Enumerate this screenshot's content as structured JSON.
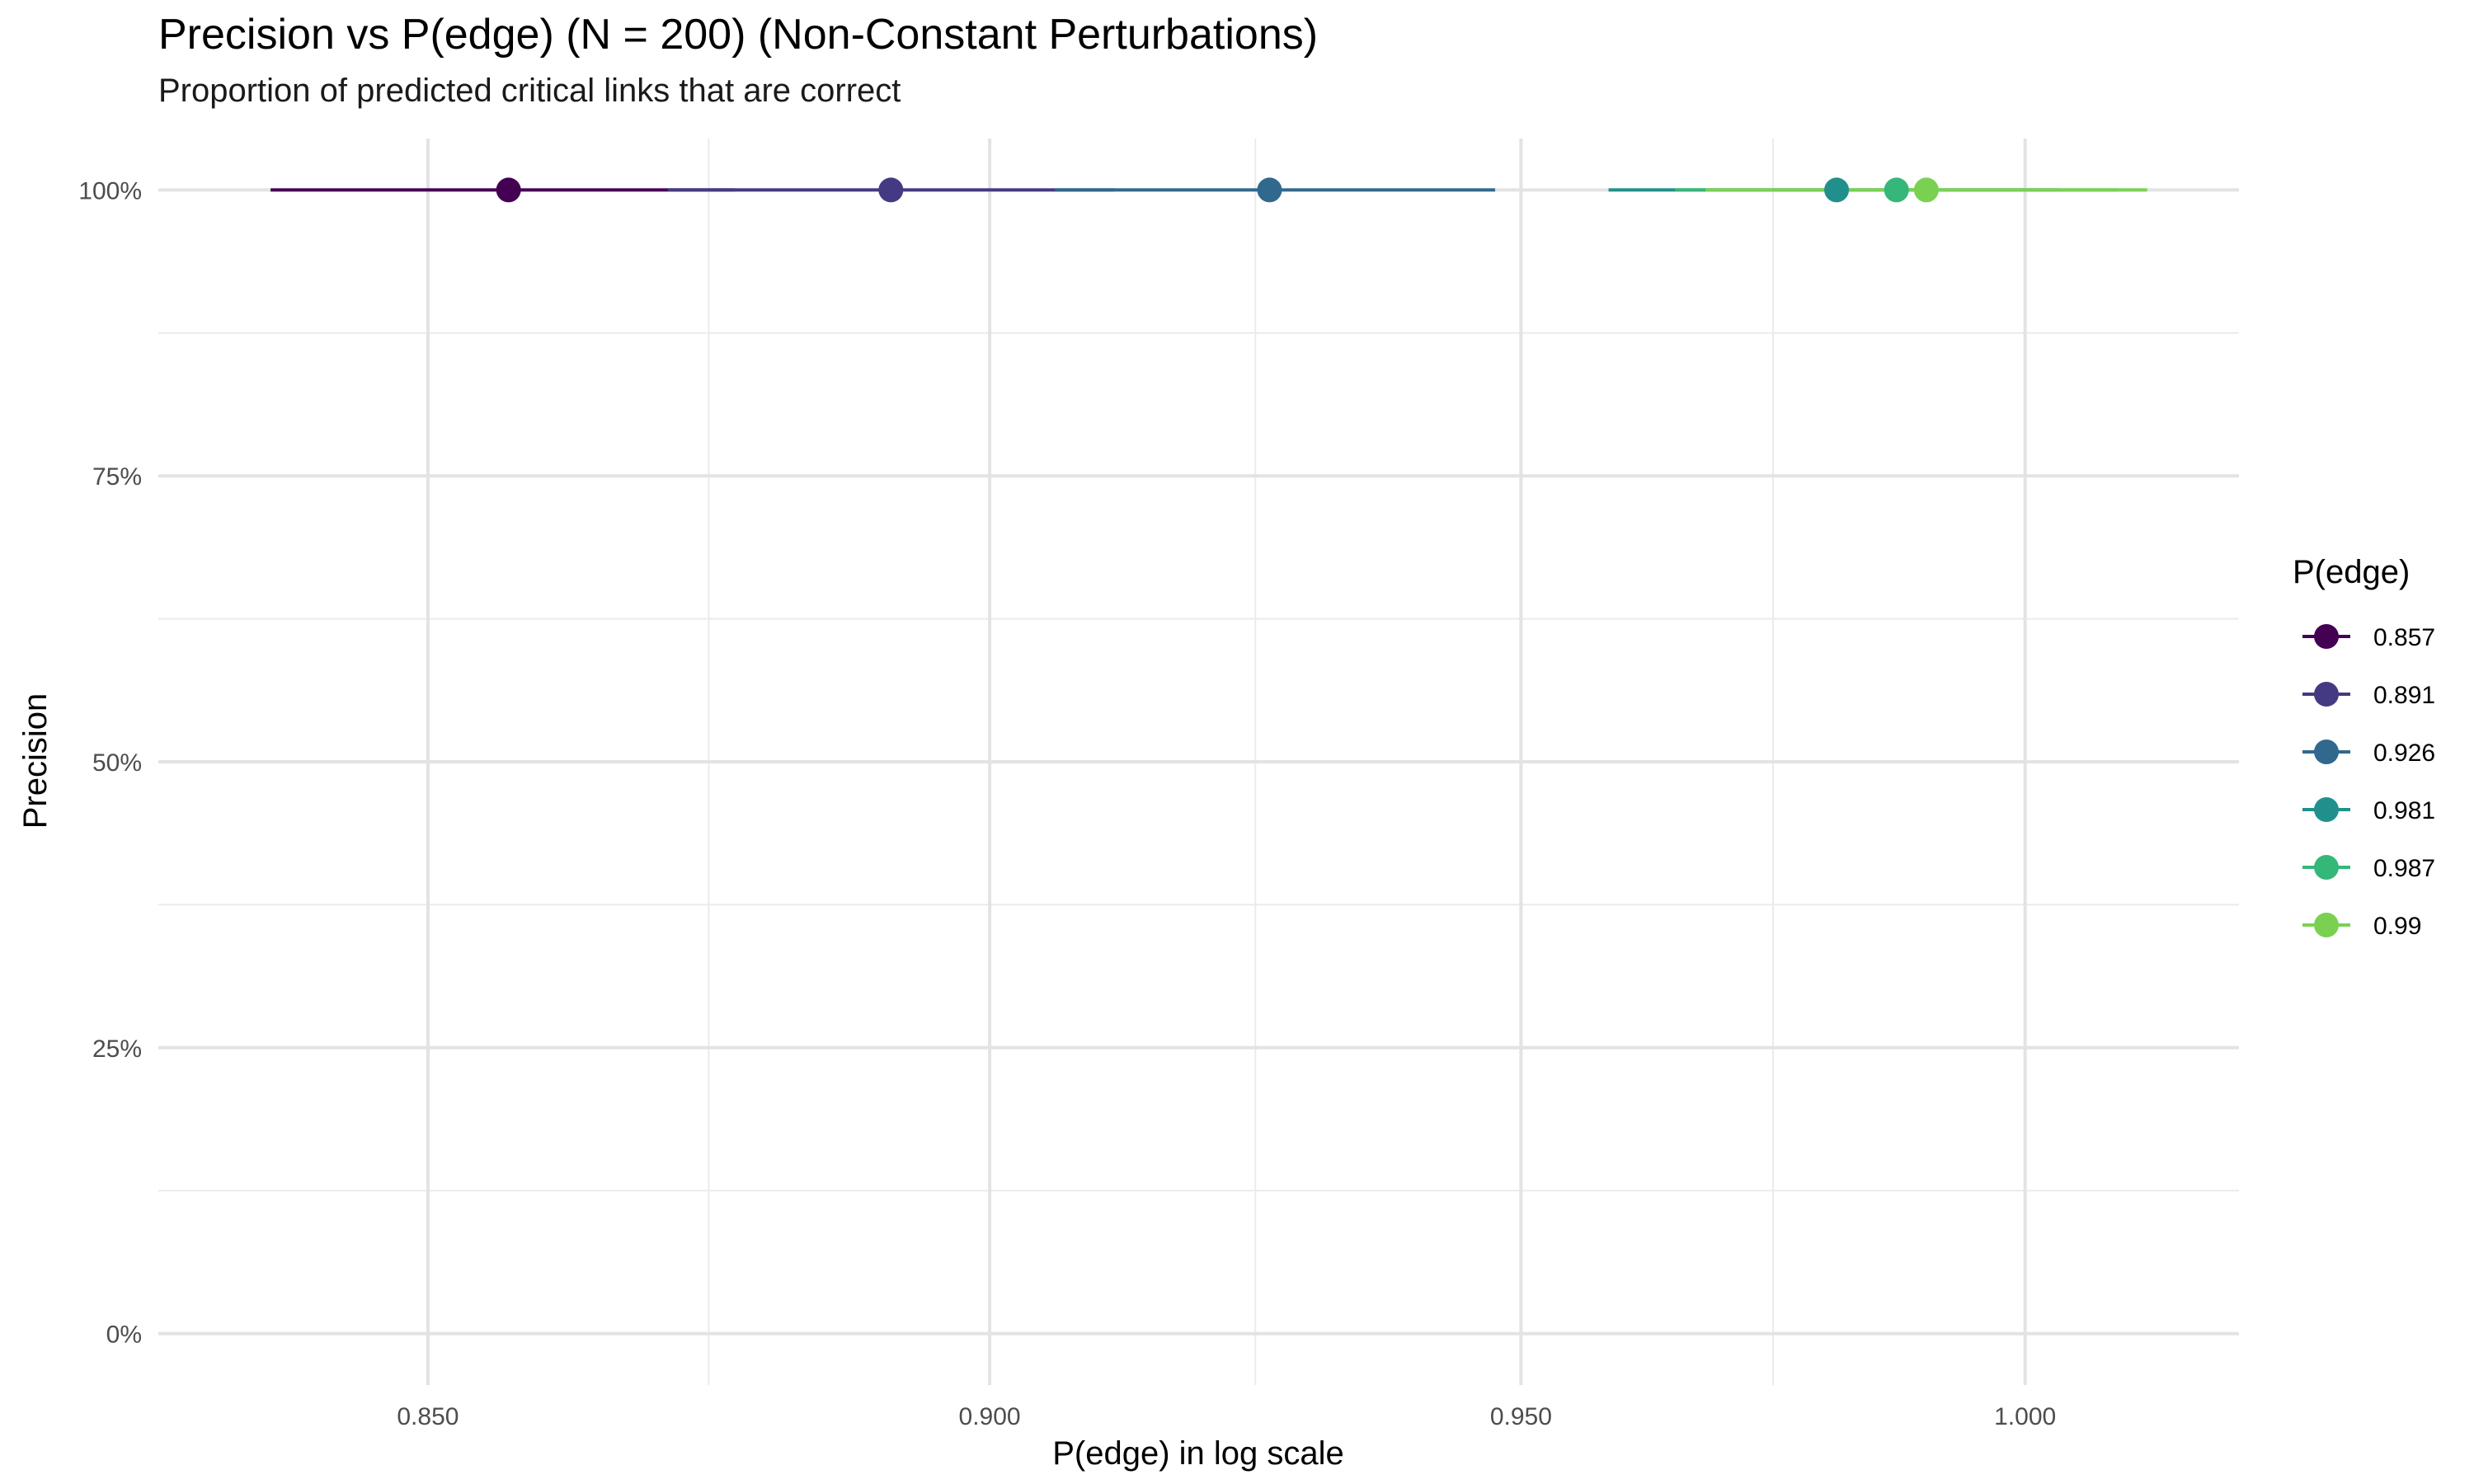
{
  "chart_data": {
    "type": "scatter",
    "title": "Precision vs P(edge) (N = 200) (Non-Constant Perturbations)",
    "subtitle": "Proportion of predicted critical links that are correct",
    "xlabel": "P(edge) in log scale",
    "ylabel": "Precision",
    "x_scale": "log",
    "xlim": [
      0.827,
      1.022
    ],
    "ylim": [
      -0.045,
      1.045
    ],
    "x_ticks": [
      0.85,
      0.9,
      0.95,
      1.0
    ],
    "x_tick_labels": [
      "0.850",
      "0.900",
      "0.950",
      "1.000"
    ],
    "y_ticks": [
      0,
      0.25,
      0.5,
      0.75,
      1.0
    ],
    "y_tick_labels": [
      "0%",
      "25%",
      "50%",
      "75%",
      "100%"
    ],
    "grid": true,
    "legend_title": "P(edge)",
    "legend_position": "right",
    "series": [
      {
        "name": "0.857",
        "x": 0.857,
        "y": 1.0,
        "xmin": 0.8365,
        "xmax": 0.877,
        "color": "#440154"
      },
      {
        "name": "0.891",
        "x": 0.891,
        "y": 1.0,
        "xmin": 0.871,
        "xmax": 0.9115,
        "color": "#443A83"
      },
      {
        "name": "0.926",
        "x": 0.926,
        "y": 1.0,
        "xmin": 0.906,
        "xmax": 0.9475,
        "color": "#31688E"
      },
      {
        "name": "0.981",
        "x": 0.981,
        "y": 1.0,
        "xmin": 0.9585,
        "xmax": 1.0035,
        "color": "#21908C"
      },
      {
        "name": "0.987",
        "x": 0.987,
        "y": 1.0,
        "xmin": 0.965,
        "xmax": 1.0095,
        "color": "#35B779"
      },
      {
        "name": "0.99",
        "x": 0.99,
        "y": 1.0,
        "xmin": 0.968,
        "xmax": 1.0125,
        "color": "#7AD151"
      }
    ]
  }
}
